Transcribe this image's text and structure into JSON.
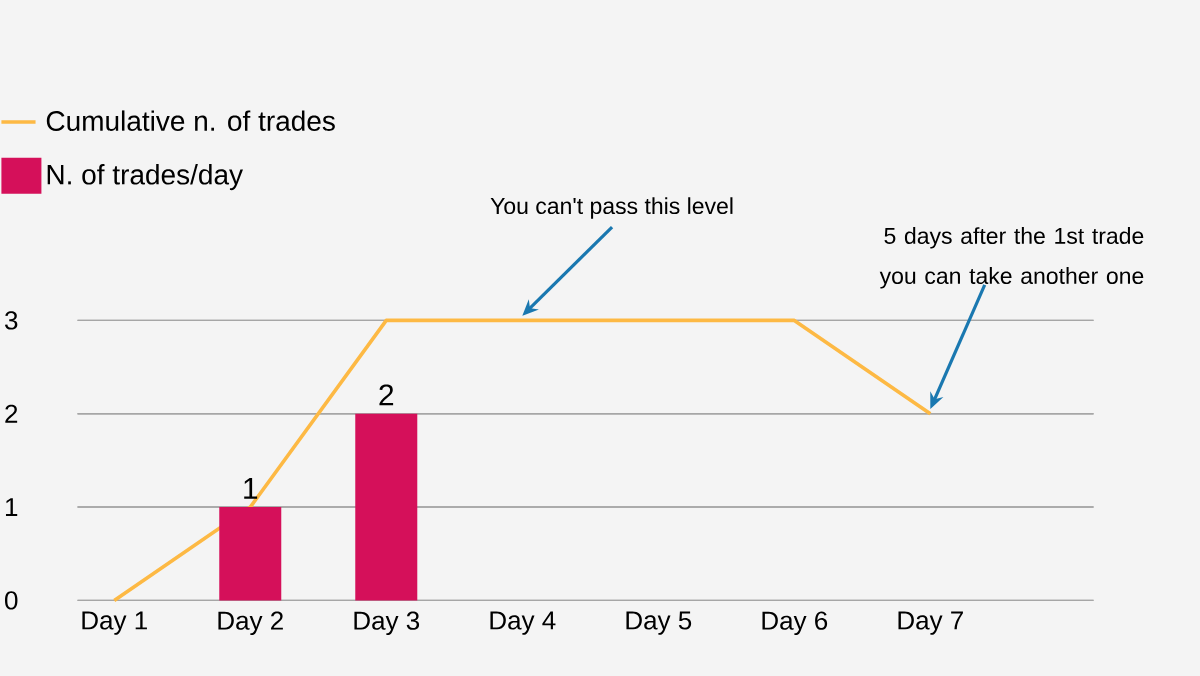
{
  "chart_data": {
    "type": "bar",
    "categories": [
      "Day 1",
      "Day 2",
      "Day 3",
      "Day 4",
      "Day 5",
      "Day 6",
      "Day 7"
    ],
    "series": [
      {
        "name": "Cumulative n. of trades",
        "type": "line",
        "color": "#fdb944",
        "values": [
          0,
          1,
          3,
          3,
          3,
          3,
          2
        ]
      },
      {
        "name": "N. of trades/day",
        "type": "bar",
        "color": "#d5105a",
        "values": [
          null,
          1,
          2,
          null,
          null,
          null,
          null
        ],
        "value_labels": [
          null,
          "1",
          "2",
          null,
          null,
          null,
          null
        ]
      }
    ],
    "ylim": [
      0,
      3
    ],
    "yticks": [
      0,
      1,
      2,
      3
    ],
    "grid": "y",
    "legend": "top left",
    "marker": "none",
    "line_style": "solid",
    "annotations": [
      {
        "text": "You can't pass this level",
        "x": "Day 4",
        "y": 3
      },
      {
        "text": "5 days after the 1st trade you can take another one",
        "x": "Day 7",
        "y": 2
      }
    ]
  }
}
